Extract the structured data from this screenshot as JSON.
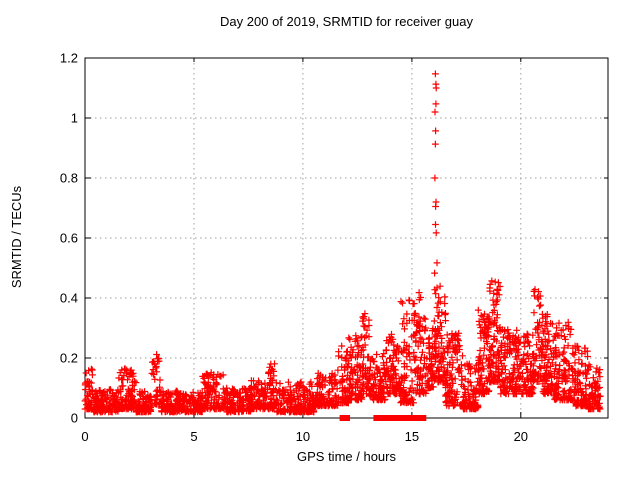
{
  "chart_data": {
    "type": "scatter",
    "title": "Day 200 of 2019, SRMTID for receiver guay",
    "xlabel": "GPS time / hours",
    "ylabel": "SRMTID / TECUs",
    "xlim": [
      0,
      24
    ],
    "ylim": [
      0,
      1.2
    ],
    "xticks": [
      0,
      5,
      10,
      15,
      20
    ],
    "ytick_labels": [
      "0",
      "0.2",
      "0.4",
      "0.6",
      "0.8",
      "1",
      "1.2"
    ],
    "grid": {
      "style": "dotted",
      "color": "#9e9e9e",
      "on": true
    },
    "axis_color": "#000000",
    "background": "#ffffff",
    "legend": "none",
    "series": [
      {
        "name": "SRMTID",
        "marker": "plus",
        "color": "#ff0000",
        "band_segments_comment": "estimated noisy envelope [x_start_hr, x_end_hr, y_min_TECU, y_max_TECU, n_points, density_exponent]",
        "band_segments": [
          [
            0.0,
            0.35,
            0.03,
            0.17,
            45,
            2.0
          ],
          [
            0.35,
            1.55,
            0.02,
            0.1,
            140,
            2.0
          ],
          [
            1.55,
            2.35,
            0.03,
            0.165,
            100,
            2.0
          ],
          [
            2.35,
            3.05,
            0.02,
            0.09,
            80,
            2.0
          ],
          [
            3.05,
            3.45,
            0.04,
            0.215,
            35,
            1.6
          ],
          [
            3.45,
            5.4,
            0.02,
            0.09,
            220,
            2.0
          ],
          [
            5.4,
            6.4,
            0.03,
            0.155,
            110,
            2.0
          ],
          [
            6.4,
            7.6,
            0.02,
            0.1,
            130,
            2.0
          ],
          [
            7.6,
            8.35,
            0.03,
            0.13,
            85,
            2.0
          ],
          [
            8.35,
            8.75,
            0.03,
            0.185,
            50,
            1.8
          ],
          [
            8.75,
            10.55,
            0.02,
            0.12,
            195,
            2.2
          ],
          [
            10.55,
            11.6,
            0.04,
            0.15,
            110,
            2.0
          ],
          [
            11.6,
            12.1,
            0.05,
            0.25,
            60,
            2.0
          ],
          [
            12.1,
            12.7,
            0.06,
            0.28,
            85,
            2.0
          ],
          [
            12.7,
            13.05,
            0.08,
            0.35,
            45,
            1.7
          ],
          [
            13.05,
            13.8,
            0.06,
            0.22,
            95,
            2.0
          ],
          [
            13.8,
            14.45,
            0.08,
            0.28,
            80,
            1.8
          ],
          [
            14.45,
            15.1,
            0.05,
            0.4,
            85,
            1.9
          ],
          [
            15.1,
            15.65,
            0.08,
            0.42,
            75,
            1.8
          ],
          [
            15.65,
            16.0,
            0.1,
            0.3,
            50,
            1.8
          ],
          [
            16.0,
            16.55,
            0.12,
            0.44,
            85,
            1.6
          ],
          [
            16.55,
            17.35,
            0.04,
            0.3,
            110,
            1.9
          ],
          [
            17.35,
            18.05,
            0.03,
            0.18,
            90,
            2.0
          ],
          [
            18.05,
            18.55,
            0.08,
            0.36,
            85,
            1.7
          ],
          [
            18.55,
            19.05,
            0.12,
            0.46,
            95,
            1.6
          ],
          [
            19.05,
            19.95,
            0.08,
            0.3,
            125,
            1.9
          ],
          [
            19.95,
            20.6,
            0.08,
            0.28,
            85,
            1.9
          ],
          [
            20.6,
            21.0,
            0.12,
            0.43,
            55,
            1.6
          ],
          [
            21.0,
            21.5,
            0.08,
            0.36,
            80,
            2.0
          ],
          [
            21.5,
            22.45,
            0.06,
            0.32,
            125,
            2.0
          ],
          [
            22.45,
            23.1,
            0.04,
            0.24,
            90,
            2.1
          ],
          [
            23.1,
            23.65,
            0.03,
            0.18,
            70,
            2.0
          ]
        ],
        "spike_column": {
          "x": 16.1,
          "x_jitter": 0.12,
          "values": [
            1.147,
            1.113,
            1.1,
            1.047,
            1.02,
            0.957,
            0.913,
            0.8,
            0.72,
            0.705,
            0.645,
            0.617,
            0.517,
            0.483
          ]
        },
        "zero_flag_runs_hours": [
          [
            11.8,
            12.05
          ],
          [
            13.35,
            13.8
          ],
          [
            14.0,
            14.15
          ],
          [
            14.25,
            14.42
          ],
          [
            14.55,
            15.1
          ],
          [
            15.3,
            15.55
          ]
        ]
      }
    ]
  }
}
